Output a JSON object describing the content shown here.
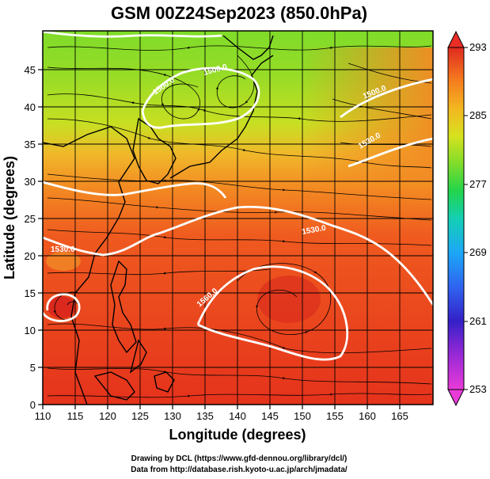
{
  "chart_data": {
    "type": "heatmap",
    "title": "GSM 00Z24Sep2023 (850.0hPa)",
    "xlabel": "Longitude (degrees)",
    "ylabel": "Latitude  (degrees)",
    "xlim": [
      110,
      170
    ],
    "ylim": [
      0,
      50
    ],
    "x_ticks": [
      "110",
      "115",
      "120",
      "125",
      "130",
      "135",
      "140",
      "145",
      "150",
      "155",
      "160",
      "165"
    ],
    "y_ticks": [
      "0",
      "5",
      "10",
      "15",
      "20",
      "25",
      "30",
      "35",
      "40",
      "45"
    ],
    "colorbar": {
      "min": 253,
      "max": 293,
      "tick_labels": [
        "293",
        "285",
        "277",
        "269",
        "261",
        "253"
      ],
      "colors": [
        "#e93bd8",
        "#9a29d6",
        "#3420c8",
        "#2f64f0",
        "#1ca7f6",
        "#14cfb4",
        "#22d44c",
        "#7fdc2a",
        "#d6e21f",
        "#f3b820",
        "#f57f1f",
        "#ee4b1d",
        "#e02a1f"
      ]
    },
    "contour_labels": [
      "1530.0",
      "1530.0",
      "1500.0",
      "1530.0",
      "1560.0",
      "1500.0",
      "1500.0"
    ],
    "grid": true,
    "credits": [
      "Drawing by DCL (https://www.gfd-dennou.org/library/dcl/)",
      "Data from http://database.rish.kyoto-u.ac.jp/arch/jmadata/"
    ]
  }
}
